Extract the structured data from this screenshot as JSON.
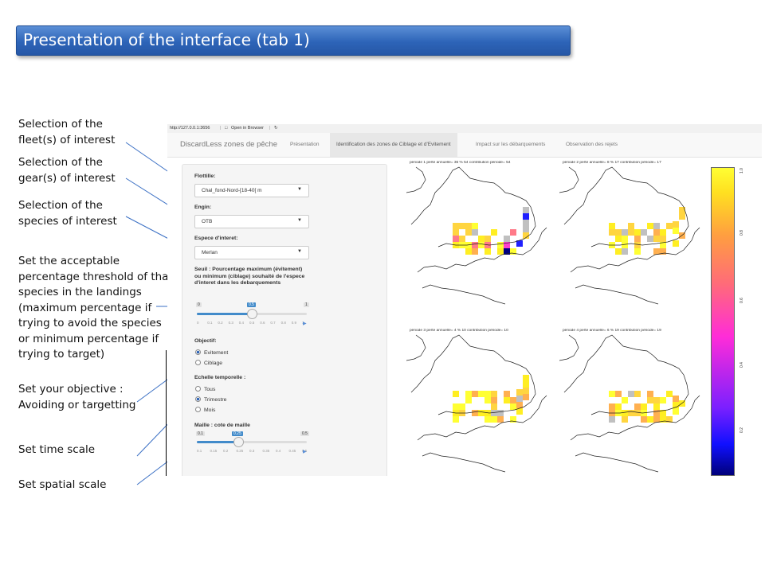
{
  "slide": {
    "title": "Presentation of the interface (tab 1)"
  },
  "annotations": [
    {
      "lines": [
        "Selection of the",
        "fleet(s) of interest"
      ]
    },
    {
      "lines": [
        "Selection of the",
        "gear(s) of interest"
      ]
    },
    {
      "lines": [
        "Selection of the",
        "species of interest"
      ]
    },
    {
      "lines": [
        "Set the acceptable",
        "percentage threshold of that",
        "species in the landings",
        "(maximum  percentage if",
        "trying to avoid the species",
        "or  minimum percentage if",
        "trying to target)"
      ]
    },
    {
      "lines": [
        "Set your objective :",
        "Avoiding or targetting"
      ]
    },
    {
      "lines": [
        "Set time scale"
      ]
    },
    {
      "lines": [
        "Set spatial scale"
      ]
    }
  ],
  "browser": {
    "url": "http://127.0.0.1:3656",
    "open_label": "Open in Browser"
  },
  "app": {
    "brand": "DiscardLess zones de pêche",
    "tabs": [
      "Présentation",
      "Identification des zones de Ciblage et d'Evitement",
      "Impact sur les débarquements",
      "Observation des rejets"
    ],
    "active_tab": 1
  },
  "form": {
    "flottille": {
      "label": "Flottille:",
      "value": "Chal_fond-Nord-[18-40[ m"
    },
    "engin": {
      "label": "Engin:",
      "value": "OTB"
    },
    "espece": {
      "label": "Espece d'interet:",
      "value": "Merlan"
    },
    "seuil": {
      "label": "Seuil : Pourcentage maximum (évitement) ou minimum (ciblage) souhaité de l'espece d'interet dans les debarquements",
      "min": "0",
      "max": "1",
      "value": "0.5",
      "ticks": [
        "0",
        "0.1",
        "0.2",
        "0.3",
        "0.4",
        "0.5",
        "0.6",
        "0.7",
        "0.8",
        "0.9",
        "1"
      ]
    },
    "objectif": {
      "label": "Objectif:",
      "options": [
        "Evitement",
        "Ciblage"
      ],
      "selected": 0
    },
    "echelle": {
      "label": "Echelle temporelle :",
      "options": [
        "Tous",
        "Trimestre",
        "Mois"
      ],
      "selected": 1
    },
    "maille": {
      "label": "Maille : cote de maille",
      "min": "0.1",
      "max": "0.5",
      "value": "0.25",
      "ticks": [
        "0.1",
        "0.15",
        "0.2",
        "0.25",
        "0.3",
        "0.35",
        "0.4",
        "0.45",
        "0.5"
      ]
    }
  },
  "maps": [
    {
      "title": "période 1 perte annuelle= 36 % 54 contribution période= 54"
    },
    {
      "title": "période 2 perte annuelle= 8 % 17 contribution période= 17"
    },
    {
      "title": "période 3 perte annuelle= 4 % 10 contribution période= 10"
    },
    {
      "title": "période 4 perte annuelle= 6 % 19 contribution période= 19"
    }
  ],
  "colorbar": {
    "labels": [
      "1.0",
      "0.8",
      "0.6",
      "0.4",
      "0.2"
    ],
    "colors": [
      "#00007a",
      "#1010ff",
      "#ff2cd8",
      "#ffe020",
      "#ffff33"
    ]
  }
}
